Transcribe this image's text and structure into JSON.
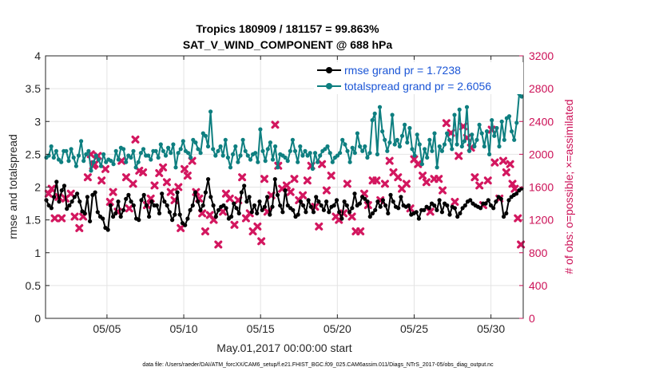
{
  "chart_data": {
    "type": "line",
    "title": "Tropics 180909 / 181157 = 99.863%",
    "subtitle": "SAT_V_WIND_COMPONENT @ 688 hPa",
    "xlabel": "May.01,2017 00:00:00 start",
    "ylabel_left": "rmse and totalspread",
    "ylabel_right": "# of obs: o=possible; ×=assimilated",
    "footnote": "data file: /Users/raeder/DAI/ATM_forcXX/CAM6_setup/f.e21.FHIST_BGC.f09_025.CAM6assim.011/Diags_NTrS_2017-05/obs_diag_output.nc",
    "xlim": [
      1.0,
      32.1
    ],
    "ylim_left": [
      0,
      4
    ],
    "ylim_right": [
      0,
      3200
    ],
    "x_ticks": [
      5,
      10,
      15,
      20,
      25,
      30
    ],
    "x_tick_labels": [
      "05/05",
      "05/10",
      "05/15",
      "05/20",
      "05/25",
      "05/30"
    ],
    "y_left_ticks": [
      "0",
      "0.5",
      "1",
      "1.5",
      "2",
      "2.5",
      "3",
      "3.5",
      "4"
    ],
    "y_right_ticks": [
      "0",
      "400",
      "800",
      "1200",
      "1600",
      "2000",
      "2400",
      "2800",
      "3200"
    ],
    "grid": true,
    "legend_position": "top-right",
    "colors": {
      "rmse": "#000000",
      "totalspread": "#0e7f80",
      "obs": "#d3175f",
      "legend_text": "#1a55d6",
      "right_axis": "#cc1157"
    },
    "series": [
      {
        "name": "rmse grand pr = 1.7238",
        "axis": "left",
        "marker": "circle",
        "values": [
          1.8,
          1.72,
          1.68,
          1.85,
          2.08,
          1.78,
          1.95,
          2.02,
          1.67,
          1.72,
          1.78,
          1.85,
          1.9,
          1.78,
          1.63,
          1.6,
          1.85,
          1.48,
          1.88,
          1.92,
          1.62,
          1.55,
          1.52,
          1.38,
          1.35,
          1.72,
          1.55,
          1.6,
          1.78,
          1.55,
          1.65,
          1.82,
          1.88,
          1.78,
          1.72,
          1.52,
          1.5,
          1.8,
          1.88,
          1.72,
          1.55,
          1.78,
          1.72,
          1.72,
          1.6,
          1.9,
          1.78,
          1.72,
          1.62,
          1.5,
          1.58,
          1.92,
          1.58,
          1.45,
          1.42,
          1.52,
          1.65,
          1.72,
          1.92,
          1.78,
          1.65,
          1.72,
          1.92,
          2.12,
          1.85,
          1.72,
          1.55,
          1.65,
          1.7,
          1.72,
          1.68,
          1.52,
          1.55,
          1.75,
          1.68,
          1.6,
          1.92,
          2.02,
          1.78,
          1.85,
          1.62,
          1.72,
          1.6,
          1.78,
          1.65,
          1.7,
          1.85,
          1.58,
          1.7,
          2.12,
          1.88,
          1.72,
          1.62,
          1.95,
          1.72,
          1.68,
          1.65,
          1.55,
          1.58,
          1.78,
          1.72,
          1.62,
          1.8,
          1.7,
          1.62,
          1.85,
          1.78,
          1.72,
          1.65,
          1.78,
          1.62,
          1.7,
          1.72,
          1.8,
          1.62,
          1.52,
          1.78,
          1.72,
          1.62,
          1.68,
          1.9,
          1.72,
          1.75,
          1.85,
          1.82,
          1.78,
          1.55,
          1.6,
          1.65,
          1.78,
          1.7,
          1.8,
          1.72,
          1.6,
          1.88,
          1.78,
          1.7,
          1.68,
          1.85,
          1.72,
          1.7,
          1.72,
          1.58,
          1.6,
          1.62,
          1.52,
          1.65,
          1.65,
          1.7,
          1.68,
          1.75,
          1.72,
          1.65,
          1.8,
          1.62,
          1.75,
          1.72,
          1.58,
          1.7,
          1.68,
          1.55,
          1.6,
          1.68,
          1.72,
          1.78,
          1.8,
          1.75,
          1.72,
          1.7,
          1.68,
          1.75,
          1.75,
          1.8,
          1.72,
          1.68,
          1.78,
          1.85,
          1.82,
          1.55,
          1.6,
          1.8,
          1.85,
          1.88,
          1.9,
          1.95,
          1.98
        ]
      },
      {
        "name": "totalspread grand pr = 2.6056",
        "axis": "left",
        "marker": "circle",
        "values": [
          2.45,
          2.48,
          2.62,
          2.45,
          2.55,
          2.42,
          2.38,
          2.55,
          2.55,
          2.4,
          2.58,
          2.45,
          2.32,
          2.48,
          2.7,
          2.4,
          2.5,
          2.55,
          2.25,
          2.38,
          2.48,
          2.42,
          2.32,
          2.5,
          2.38,
          2.42,
          2.4,
          2.35,
          2.55,
          2.42,
          2.6,
          2.58,
          2.38,
          2.48,
          2.45,
          2.55,
          2.3,
          2.38,
          2.52,
          2.58,
          2.48,
          2.48,
          2.42,
          2.55,
          2.55,
          2.45,
          2.65,
          2.55,
          2.48,
          2.6,
          2.52,
          2.65,
          2.3,
          2.52,
          2.58,
          2.7,
          2.55,
          2.52,
          2.45,
          2.72,
          2.68,
          2.58,
          2.52,
          2.82,
          2.78,
          2.62,
          3.15,
          2.58,
          2.48,
          2.55,
          2.62,
          2.48,
          2.72,
          2.45,
          2.3,
          2.5,
          2.62,
          2.38,
          2.48,
          2.72,
          2.55,
          2.48,
          2.42,
          2.5,
          2.52,
          2.38,
          2.88,
          2.55,
          2.4,
          2.58,
          2.68,
          2.42,
          2.62,
          2.3,
          2.5,
          2.48,
          2.45,
          2.4,
          2.55,
          2.72,
          2.55,
          2.38,
          2.62,
          2.48,
          2.55,
          2.48,
          2.52,
          2.28,
          2.52,
          2.38,
          2.48,
          2.55,
          2.58,
          2.62,
          2.52,
          2.38,
          2.45,
          2.48,
          2.52,
          2.72,
          2.65,
          2.55,
          2.38,
          2.6,
          2.52,
          2.82,
          2.62,
          2.55,
          2.62,
          2.45,
          2.52,
          3.02,
          3.12,
          2.5,
          3.22,
          2.85,
          2.72,
          2.55,
          2.68,
          3.1,
          2.65,
          2.72,
          2.62,
          2.78,
          2.95,
          2.68,
          2.9,
          2.58,
          2.48,
          2.8,
          2.65,
          2.35,
          2.58,
          2.45,
          2.72,
          2.55,
          2.82,
          2.3,
          2.62,
          2.55,
          2.65,
          2.82,
          2.72,
          2.58,
          3.1,
          2.65,
          3.18,
          2.62,
          2.7,
          3.22,
          2.55,
          2.8,
          2.62,
          2.72,
          2.95,
          2.82,
          2.62,
          2.85,
          2.5,
          3.02,
          2.78,
          2.9,
          2.62,
          3.0,
          2.72,
          3.05,
          3.08,
          2.85,
          2.72,
          2.98,
          3.42,
          3.38
        ]
      }
    ],
    "obs_assimilated": {
      "name": "# of obs assimilated",
      "axis": "right",
      "marker": "x",
      "x": [
        1.2,
        1.4,
        1.6,
        1.85,
        2.05,
        2.3,
        2.65,
        2.9,
        3.2,
        3.45,
        3.75,
        3.95,
        4.1,
        4.2,
        4.4,
        4.65,
        4.9,
        5.2,
        5.4,
        5.7,
        5.95,
        6.25,
        6.45,
        6.7,
        6.85,
        7.1,
        7.35,
        7.6,
        7.85,
        8.1,
        8.4,
        8.65,
        8.9,
        9.15,
        9.4,
        9.65,
        9.8,
        10.05,
        10.25,
        10.55,
        10.8,
        11.0,
        11.2,
        11.4,
        11.7,
        11.95,
        12.25,
        12.55,
        12.75,
        13.0,
        13.3,
        13.55,
        13.8,
        14.05,
        14.3,
        14.5,
        14.8,
        15.05,
        15.25,
        15.45,
        15.7,
        15.95,
        16.15,
        16.4,
        16.7,
        16.95,
        17.2,
        17.5,
        17.75,
        18.05,
        18.3,
        18.55,
        18.8,
        19.0,
        19.3,
        19.6,
        19.9,
        20.1,
        20.4,
        20.65,
        20.95,
        21.2,
        21.5,
        21.75,
        22.0,
        22.3,
        22.55,
        22.8,
        23.1,
        23.4,
        23.65,
        23.95,
        24.2,
        24.5,
        24.75,
        25.0,
        25.25,
        25.55,
        25.8,
        26.05,
        26.3,
        26.6,
        26.85,
        27.1,
        27.4,
        27.65,
        27.9,
        28.2,
        28.45,
        28.7,
        28.95,
        29.25,
        29.5,
        29.8,
        30.05,
        30.25,
        30.55,
        30.8,
        31.0,
        31.25,
        31.4,
        31.55,
        31.75,
        31.95
      ],
      "values": [
        1520,
        1580,
        1220,
        1480,
        1220,
        1460,
        1520,
        1240,
        1100,
        1240,
        1720,
        2000,
        1860,
        1880,
        1980,
        1680,
        1820,
        1420,
        1540,
        1300,
        1920,
        1720,
        1340,
        1640,
        2180,
        1800,
        1780,
        1380,
        1460,
        1620,
        1770,
        1840,
        1660,
        1540,
        1440,
        1600,
        1100,
        1820,
        1740,
        1920,
        1540,
        1460,
        1280,
        1060,
        1260,
        1200,
        900,
        1300,
        1520,
        1460,
        1140,
        1440,
        1720,
        1220,
        1280,
        1060,
        1120,
        940,
        1700,
        1300,
        1500,
        2360,
        1860,
        1580,
        1620,
        1540,
        1700,
        1440,
        1500,
        1680,
        1860,
        1360,
        1120,
        1880,
        1560,
        1740,
        1240,
        1200,
        1280,
        1640,
        1240,
        1060,
        1060,
        1520,
        1380,
        1680,
        1680,
        1440,
        1640,
        1920,
        1780,
        1720,
        1580,
        1640,
        1340,
        1940,
        1880,
        1740,
        1660,
        1300,
        1700,
        1700,
        1560,
        2380,
        2260,
        1420,
        1980,
        2340,
        2200,
        2080,
        1720,
        1620,
        1380,
        1680,
        2300,
        1900,
        1460,
        1920,
        1780,
        1880,
        1640,
        1580,
        1220,
        900
      ]
    }
  }
}
